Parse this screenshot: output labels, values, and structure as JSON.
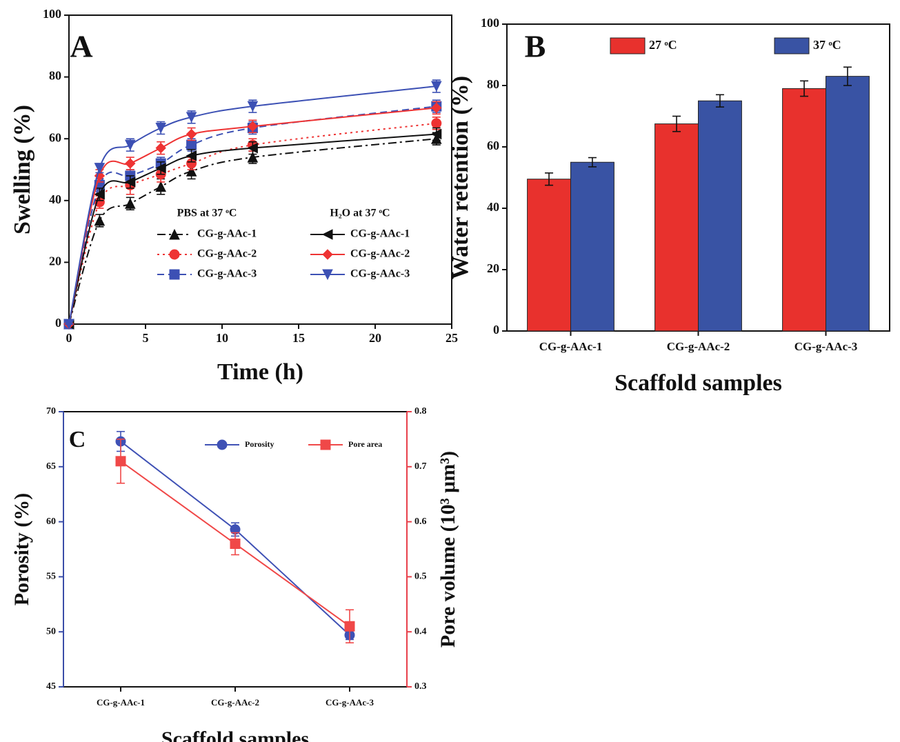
{
  "chart_data": [
    {
      "type": "line",
      "panel_label": "A",
      "xlabel": "Time (h)",
      "ylabel": "Swelling (%)",
      "x": [
        0,
        2,
        4,
        6,
        8,
        12,
        24
      ],
      "xlim": [
        0,
        25
      ],
      "xticks": [
        0,
        5,
        10,
        15,
        20,
        25
      ],
      "ylim": [
        0,
        100
      ],
      "yticks": [
        0,
        20,
        40,
        60,
        80,
        100
      ],
      "series_groups": [
        {
          "name": "PBS at 37 ᵒC",
          "series": [
            {
              "name": "CG-g-AAc-1",
              "color": "#111111",
              "dash": "dashdot",
              "marker": "triangle-up",
              "values": [
                0,
                33.5,
                39,
                44.5,
                49.5,
                54,
                60
              ],
              "errors": [
                0,
                2,
                2,
                2.5,
                2.5,
                2,
                2
              ]
            },
            {
              "name": "CG-g-AAc-2",
              "color": "#ee3333",
              "dash": "dotted",
              "marker": "circle",
              "values": [
                0,
                39.5,
                45,
                48.5,
                52,
                58,
                65
              ],
              "errors": [
                0,
                2,
                3,
                2.5,
                2,
                2,
                2
              ]
            },
            {
              "name": "CG-g-AAc-3",
              "color": "#3c50b4",
              "dash": "dashed",
              "marker": "square",
              "values": [
                0,
                45,
                48,
                52,
                58,
                63.5,
                70.5
              ],
              "errors": [
                0,
                2,
                2,
                2,
                2,
                2,
                2
              ]
            }
          ]
        },
        {
          "name": "H₂O at 37 ᵒC",
          "series": [
            {
              "name": "CG-g-AAc-1",
              "color": "#111111",
              "dash": "solid",
              "marker": "triangle-left",
              "values": [
                0,
                42,
                46,
                50.5,
                54.5,
                57,
                61.5
              ],
              "errors": [
                0,
                2,
                2,
                2,
                2,
                2,
                2
              ]
            },
            {
              "name": "CG-g-AAc-2",
              "color": "#ee3333",
              "dash": "solid",
              "marker": "diamond",
              "values": [
                0,
                48,
                52,
                57,
                61.5,
                64,
                70
              ],
              "errors": [
                0,
                2,
                2,
                2,
                2,
                2,
                2
              ]
            },
            {
              "name": "CG-g-AAc-3",
              "color": "#3c50b4",
              "dash": "solid",
              "marker": "triangle-down",
              "values": [
                0,
                50.5,
                58,
                63.5,
                67,
                70.5,
                77
              ],
              "errors": [
                0,
                1.5,
                2,
                2,
                2,
                2,
                2
              ]
            }
          ]
        }
      ]
    },
    {
      "type": "bar",
      "panel_label": "B",
      "xlabel": "Scaffold samples",
      "ylabel": "Water retention (%)",
      "categories": [
        "CG-g-AAc-1",
        "CG-g-AAc-2",
        "CG-g-AAc-3"
      ],
      "ylim": [
        0,
        100
      ],
      "yticks": [
        0,
        20,
        40,
        60,
        80,
        100
      ],
      "legend": "top",
      "series": [
        {
          "name": "27 ᵒC",
          "color": "#e8312d",
          "values": [
            49.5,
            67.5,
            79
          ],
          "errors": [
            2,
            2.5,
            2.5
          ]
        },
        {
          "name": "37 ᵒC",
          "color": "#3953a4",
          "values": [
            55,
            75,
            83
          ],
          "errors": [
            1.5,
            2,
            3
          ]
        }
      ]
    },
    {
      "type": "line",
      "panel_label": "C",
      "xlabel": "Scaffold samples",
      "ylabel": "Porosity (%)",
      "y2label": "Pore volume (10³ μm³)",
      "categories": [
        "CG-g-AAc-1",
        "CG-g-AAc-2",
        "CG-g-AAc-3"
      ],
      "ylim": [
        45,
        70
      ],
      "yticks": [
        45,
        50,
        55,
        60,
        65,
        70
      ],
      "ycolor": "#3a4da8",
      "y2lim": [
        0.3,
        0.8
      ],
      "y2ticks": [
        0.3,
        0.4,
        0.5,
        0.6,
        0.7,
        0.8
      ],
      "y2color": "#e8404a",
      "series": [
        {
          "name": "Porosity",
          "color": "#3f51b5",
          "dash": "solid",
          "marker": "circle",
          "values": [
            67.3,
            59.3,
            49.7
          ],
          "errors": [
            0.9,
            0.6,
            0.4
          ]
        },
        {
          "name": "Pore area",
          "color": "#f04848",
          "dash": "solid",
          "marker": "square",
          "axis": "y2",
          "values": [
            0.71,
            0.56,
            0.41
          ],
          "errors": [
            0.04,
            0.02,
            0.03
          ]
        }
      ]
    }
  ]
}
